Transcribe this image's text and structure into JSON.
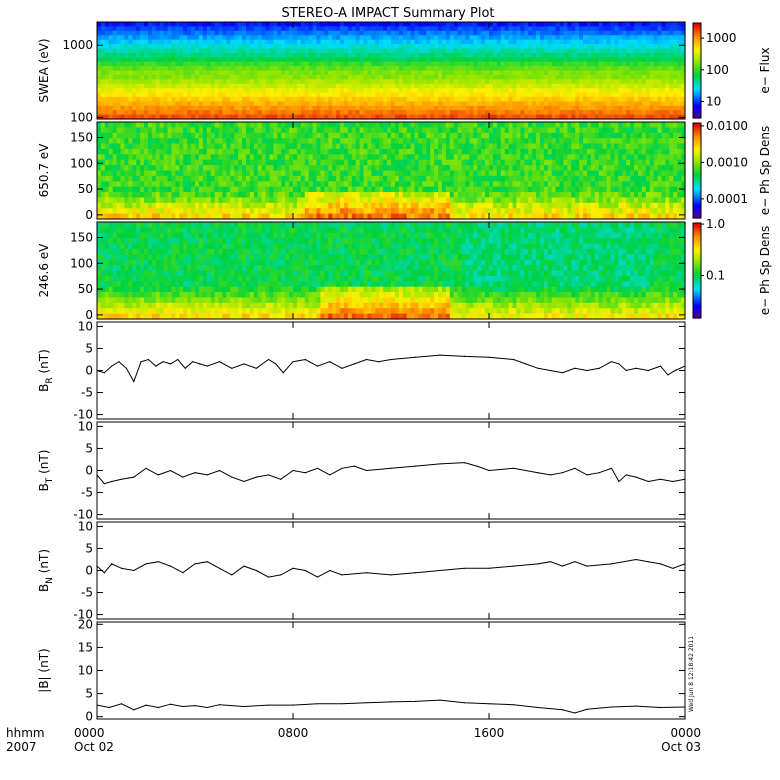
{
  "chart_data": {
    "title": "STEREO-A IMPACT Summary Plot",
    "time_axis": {
      "row_label": "hhmm",
      "year": "2007",
      "range_hours": [
        0,
        24
      ],
      "ticks": [
        {
          "hours": 0,
          "label": "0000",
          "date": "Oct 02"
        },
        {
          "hours": 8,
          "label": "0800",
          "date": ""
        },
        {
          "hours": 16,
          "label": "1600",
          "date": ""
        },
        {
          "hours": 24,
          "label": "0000",
          "date": "Oct 03"
        }
      ]
    },
    "spectrograms": [
      {
        "id": "swea",
        "type": "heatmap",
        "ylabel": "SWEA (eV)",
        "yscale": "log",
        "ylim": [
          95,
          2100
        ],
        "yticks": [
          {
            "v": 1000,
            "label": "1000"
          },
          {
            "v": 100,
            "label": "100"
          }
        ],
        "colorbar": {
          "label": "e− Flux",
          "scale": "log",
          "range": [
            3,
            3000
          ],
          "ticks": [
            {
              "v": 1000,
              "label": "1000"
            },
            {
              "v": 100,
              "label": "100"
            },
            {
              "v": 10,
              "label": "10"
            }
          ]
        },
        "description_bands": "highest flux at lowest energies, decreasing with energy"
      },
      {
        "id": "pad650",
        "type": "heatmap",
        "ylabel": "650.7 eV",
        "yscale": "linear",
        "ylim": [
          -8,
          180
        ],
        "yticks": [
          {
            "v": 150,
            "label": "150"
          },
          {
            "v": 100,
            "label": "100"
          },
          {
            "v": 50,
            "label": "50"
          },
          {
            "v": 0,
            "label": "0"
          }
        ],
        "colorbar": {
          "label": "e− Ph Sp Dens",
          "scale": "log",
          "range": [
            3e-05,
            0.012
          ],
          "ticks": [
            {
              "v": 0.01,
              "label": "0.0100"
            },
            {
              "v": 0.001,
              "label": "0.0010"
            },
            {
              "v": 0.0001,
              "label": "0.0001"
            }
          ]
        }
      },
      {
        "id": "pad246",
        "type": "heatmap",
        "ylabel": "246.6 eV",
        "yscale": "linear",
        "ylim": [
          -8,
          180
        ],
        "yticks": [
          {
            "v": 150,
            "label": "150"
          },
          {
            "v": 100,
            "label": "100"
          },
          {
            "v": 50,
            "label": "50"
          },
          {
            "v": 0,
            "label": "0"
          }
        ],
        "colorbar": {
          "label": "e− Ph Sp Dens",
          "scale": "log",
          "range": [
            0.015,
            1.05
          ],
          "ticks": [
            {
              "v": 1.0,
              "label": "1.0"
            },
            {
              "v": 0.1,
              "label": "0.1"
            }
          ]
        }
      }
    ],
    "line_panels": [
      {
        "id": "br",
        "type": "line",
        "ylabel_main": "B",
        "ylabel_sub": "R",
        "ylabel_unit": " (nT)",
        "ylim": [
          -11,
          11
        ],
        "yticks": [
          {
            "v": 10,
            "label": "10"
          },
          {
            "v": 5,
            "label": "5"
          },
          {
            "v": 0,
            "label": "0"
          },
          {
            "v": -5,
            "label": "-5"
          },
          {
            "v": -10,
            "label": "-10"
          }
        ],
        "x": [
          0,
          0.3,
          0.6,
          0.9,
          1.2,
          1.5,
          1.8,
          2.1,
          2.4,
          2.7,
          3.0,
          3.3,
          3.6,
          3.9,
          4.2,
          4.5,
          5.0,
          5.5,
          6.0,
          6.5,
          7.0,
          7.3,
          7.6,
          8.0,
          8.5,
          9.0,
          9.5,
          10.0,
          10.5,
          11.0,
          11.5,
          12.0,
          13.0,
          14.0,
          15.0,
          16.0,
          17.0,
          17.5,
          18.0,
          18.5,
          19.0,
          19.5,
          20.0,
          20.5,
          21.0,
          21.3,
          21.6,
          22.0,
          22.5,
          23.0,
          23.3,
          23.6,
          24.0
        ],
        "y": [
          0.0,
          -0.5,
          1.0,
          2.0,
          0.5,
          -2.5,
          2.0,
          2.5,
          1.0,
          2.0,
          1.5,
          2.5,
          0.5,
          2.0,
          1.5,
          1.0,
          2.0,
          0.5,
          1.5,
          0.5,
          2.5,
          1.5,
          -0.5,
          2.0,
          2.5,
          1.0,
          2.0,
          0.5,
          1.5,
          2.5,
          2.0,
          2.5,
          3.0,
          3.5,
          3.2,
          3.0,
          2.5,
          1.5,
          0.5,
          0.0,
          -0.5,
          0.5,
          0.0,
          0.5,
          2.0,
          1.5,
          0.0,
          0.5,
          0.0,
          1.0,
          -1.0,
          0.0,
          1.0
        ]
      },
      {
        "id": "bt",
        "type": "line",
        "ylabel_main": "B",
        "ylabel_sub": "T",
        "ylabel_unit": " (nT)",
        "ylim": [
          -11,
          11
        ],
        "yticks": [
          {
            "v": 10,
            "label": "10"
          },
          {
            "v": 5,
            "label": "5"
          },
          {
            "v": 0,
            "label": "0"
          },
          {
            "v": -5,
            "label": "-5"
          },
          {
            "v": -10,
            "label": "-10"
          }
        ],
        "x": [
          0,
          0.3,
          0.6,
          1.0,
          1.5,
          2.0,
          2.5,
          3.0,
          3.5,
          4.0,
          4.5,
          5.0,
          5.5,
          6.0,
          6.5,
          7.0,
          7.5,
          8.0,
          8.5,
          9.0,
          9.5,
          10.0,
          10.5,
          11.0,
          12.0,
          13.0,
          14.0,
          15.0,
          15.5,
          16.0,
          17.0,
          18.0,
          18.5,
          19.0,
          19.5,
          20.0,
          20.5,
          21.0,
          21.3,
          21.6,
          22.0,
          22.5,
          23.0,
          23.5,
          24.0
        ],
        "y": [
          -1.0,
          -3.0,
          -2.5,
          -2.0,
          -1.5,
          0.5,
          -1.0,
          0.0,
          -1.5,
          -0.5,
          -1.0,
          0.0,
          -1.5,
          -2.5,
          -1.5,
          -1.0,
          -2.0,
          0.0,
          -0.5,
          0.5,
          -1.0,
          0.5,
          1.0,
          0.0,
          0.5,
          1.0,
          1.5,
          1.8,
          1.0,
          0.0,
          0.5,
          -0.5,
          -1.0,
          -0.5,
          0.5,
          -1.0,
          -0.5,
          0.5,
          -2.5,
          -1.0,
          -1.5,
          -2.5,
          -2.0,
          -2.5,
          -2.0
        ]
      },
      {
        "id": "bn",
        "type": "line",
        "ylabel_main": "B",
        "ylabel_sub": "N",
        "ylabel_unit": " (nT)",
        "ylim": [
          -11,
          11
        ],
        "yticks": [
          {
            "v": 10,
            "label": "10"
          },
          {
            "v": 5,
            "label": "5"
          },
          {
            "v": 0,
            "label": "0"
          },
          {
            "v": -5,
            "label": "-5"
          },
          {
            "v": -10,
            "label": "-10"
          }
        ],
        "x": [
          0,
          0.3,
          0.6,
          1.0,
          1.5,
          2.0,
          2.5,
          3.0,
          3.5,
          4.0,
          4.5,
          5.0,
          5.5,
          6.0,
          6.5,
          7.0,
          7.5,
          8.0,
          8.5,
          9.0,
          9.5,
          10.0,
          11.0,
          12.0,
          13.0,
          14.0,
          15.0,
          16.0,
          17.0,
          18.0,
          18.5,
          19.0,
          19.5,
          20.0,
          21.0,
          22.0,
          22.5,
          23.0,
          23.5,
          24.0
        ],
        "y": [
          1.0,
          -0.5,
          1.5,
          0.5,
          0.0,
          1.5,
          2.0,
          1.0,
          -0.5,
          1.5,
          2.0,
          0.5,
          -1.0,
          1.0,
          0.0,
          -1.5,
          -1.0,
          0.5,
          0.0,
          -1.5,
          0.0,
          -1.0,
          -0.5,
          -1.0,
          -0.5,
          0.0,
          0.5,
          0.5,
          1.0,
          1.5,
          2.0,
          1.0,
          2.0,
          1.0,
          1.5,
          2.5,
          2.0,
          1.5,
          0.5,
          1.5
        ]
      },
      {
        "id": "bmag",
        "type": "line",
        "ylabel_main": "|B|",
        "ylabel_sub": "",
        "ylabel_unit": " (nT)",
        "ylim": [
          -0.5,
          20.5
        ],
        "yticks": [
          {
            "v": 20,
            "label": "20"
          },
          {
            "v": 15,
            "label": "15"
          },
          {
            "v": 10,
            "label": "10"
          },
          {
            "v": 5,
            "label": "5"
          },
          {
            "v": 0,
            "label": "0"
          }
        ],
        "x": [
          0,
          0.5,
          1.0,
          1.5,
          2.0,
          2.5,
          3.0,
          3.5,
          4.0,
          4.5,
          5.0,
          6.0,
          7.0,
          8.0,
          9.0,
          10.0,
          11.0,
          12.0,
          13.0,
          14.0,
          15.0,
          16.0,
          17.0,
          18.0,
          19.0,
          19.5,
          20.0,
          21.0,
          22.0,
          23.0,
          24.0
        ],
        "y": [
          2.5,
          2.0,
          2.8,
          1.5,
          2.5,
          2.0,
          2.7,
          2.2,
          2.4,
          2.0,
          2.6,
          2.2,
          2.5,
          2.5,
          2.8,
          2.8,
          3.0,
          3.2,
          3.3,
          3.6,
          3.0,
          2.8,
          2.6,
          2.0,
          1.5,
          0.8,
          1.6,
          2.1,
          2.3,
          2.0,
          2.1
        ]
      }
    ],
    "timestamp_note": "Wed Jun 8 12:18:42 2011"
  }
}
